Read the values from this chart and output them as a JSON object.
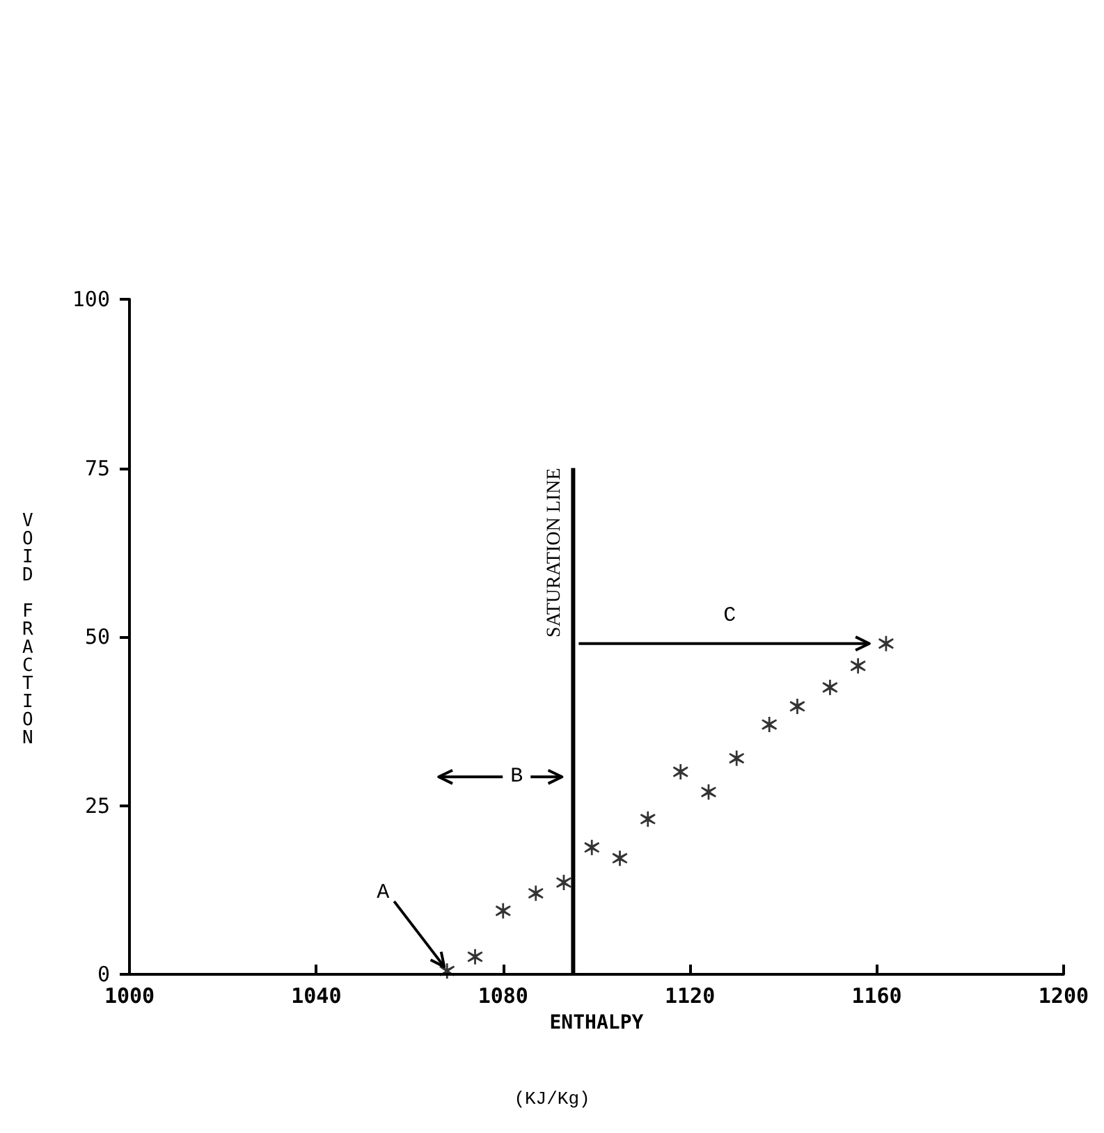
{
  "chart_data": {
    "type": "scatter",
    "xlabel": "ENTHALPY",
    "ylabel": "VOID FRACTION",
    "x": [
      1068,
      1074,
      1080,
      1087,
      1093,
      1099,
      1105,
      1111,
      1118,
      1124,
      1130,
      1137,
      1143,
      1150,
      1156,
      1162
    ],
    "series": [
      {
        "color": "#000000",
        "values": [
          0.5,
          2.6,
          9.4,
          12,
          13.6,
          18.8,
          17.2,
          23,
          30,
          27,
          32,
          37,
          39.7,
          42.5,
          45.7,
          49
        ]
      },
      {
        "type": "line",
        "name": "SATURATION LINE",
        "color": "#000000",
        "marker": "none",
        "x": [
          1095,
          1095
        ],
        "values": [
          0,
          75
        ]
      }
    ],
    "marker": "star",
    "xlim": [
      1000,
      1200
    ],
    "xticks": [
      1000,
      1040,
      1080,
      1120,
      1160,
      1200
    ],
    "ylim": [
      0,
      100
    ],
    "yticks": [
      0,
      25,
      50,
      75,
      100
    ],
    "grid": false,
    "legend": false,
    "annotations": [
      {
        "text": "A",
        "x": 1068,
        "y": 0.5
      },
      "B",
      "C",
      "(KJ/Kg)"
    ]
  }
}
